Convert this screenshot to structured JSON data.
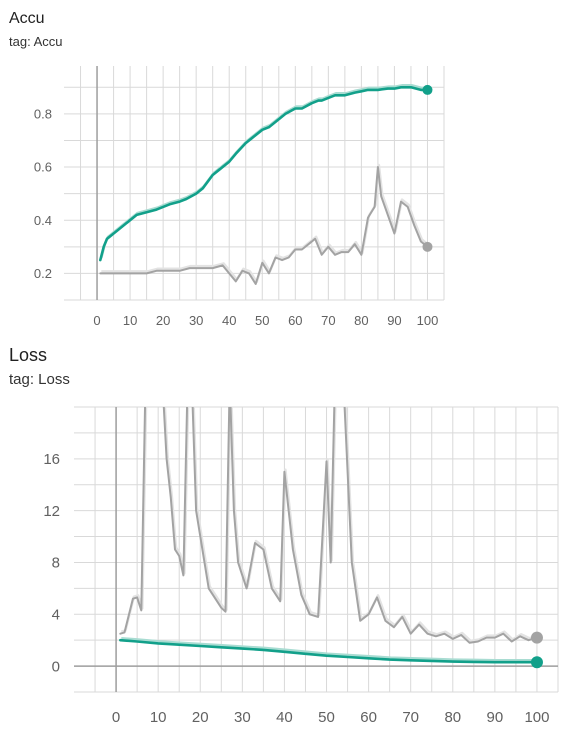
{
  "charts": [
    {
      "title": "Accu",
      "tag": "tag: Accu"
    },
    {
      "title": "Loss",
      "tag": "tag: Loss"
    }
  ],
  "colors": {
    "teal": "#12a08a",
    "gray": "#a3a3a3",
    "teal_light": "#a9dcd2",
    "gray_light": "#e3e3e3",
    "grid": "#d9d9d9"
  },
  "chart_data": [
    {
      "type": "line",
      "title": "Accu",
      "xlabel": "",
      "ylabel": "",
      "xlim": [
        -10,
        105
      ],
      "ylim": [
        0.1,
        0.98
      ],
      "xticks": [
        0,
        10,
        20,
        30,
        40,
        50,
        60,
        70,
        80,
        90,
        100
      ],
      "yticks": [
        0.2,
        0.4,
        0.6,
        0.8
      ],
      "grid": true,
      "series": [
        {
          "color": "#12a08a",
          "x": [
            1,
            2,
            3,
            4,
            5,
            6,
            8,
            10,
            12,
            15,
            18,
            20,
            22,
            25,
            27,
            30,
            32,
            35,
            37,
            40,
            42,
            45,
            47,
            50,
            52,
            55,
            57,
            60,
            62,
            65,
            67,
            68,
            70,
            72,
            75,
            78,
            80,
            82,
            85,
            88,
            90,
            92,
            95,
            98,
            100
          ],
          "values": [
            0.25,
            0.3,
            0.33,
            0.34,
            0.35,
            0.36,
            0.38,
            0.4,
            0.42,
            0.43,
            0.44,
            0.45,
            0.46,
            0.47,
            0.48,
            0.5,
            0.52,
            0.57,
            0.59,
            0.62,
            0.65,
            0.69,
            0.71,
            0.74,
            0.75,
            0.78,
            0.8,
            0.82,
            0.82,
            0.84,
            0.85,
            0.85,
            0.86,
            0.87,
            0.87,
            0.88,
            0.885,
            0.89,
            0.89,
            0.895,
            0.895,
            0.9,
            0.9,
            0.89,
            0.89
          ],
          "final": [
            100,
            0.89
          ]
        },
        {
          "color": "#a3a3a3",
          "x": [
            1,
            5,
            10,
            15,
            18,
            20,
            25,
            28,
            30,
            33,
            35,
            38,
            40,
            42,
            44,
            46,
            48,
            50,
            52,
            54,
            56,
            58,
            60,
            62,
            64,
            66,
            68,
            70,
            72,
            74,
            76,
            78,
            80,
            82,
            84,
            85,
            86,
            88,
            90,
            92,
            94,
            96,
            98,
            100
          ],
          "values": [
            0.2,
            0.2,
            0.2,
            0.2,
            0.21,
            0.21,
            0.21,
            0.22,
            0.22,
            0.22,
            0.22,
            0.23,
            0.2,
            0.17,
            0.21,
            0.2,
            0.16,
            0.24,
            0.2,
            0.26,
            0.25,
            0.26,
            0.29,
            0.29,
            0.31,
            0.33,
            0.27,
            0.3,
            0.27,
            0.28,
            0.28,
            0.31,
            0.27,
            0.41,
            0.45,
            0.6,
            0.49,
            0.42,
            0.35,
            0.47,
            0.45,
            0.38,
            0.32,
            0.3
          ],
          "final": [
            100,
            0.3
          ]
        }
      ]
    },
    {
      "type": "line",
      "title": "Loss",
      "xlabel": "",
      "ylabel": "",
      "xlim": [
        -10,
        105
      ],
      "ylim": [
        -2,
        20
      ],
      "xticks": [
        0,
        10,
        20,
        30,
        40,
        50,
        60,
        70,
        80,
        90,
        100
      ],
      "yticks": [
        0,
        4,
        8,
        12,
        16
      ],
      "grid": true,
      "series": [
        {
          "color": "#12a08a",
          "x": [
            1,
            5,
            10,
            15,
            20,
            25,
            30,
            35,
            40,
            45,
            50,
            55,
            60,
            65,
            70,
            75,
            80,
            85,
            90,
            95,
            100
          ],
          "values": [
            2.0,
            1.9,
            1.75,
            1.65,
            1.55,
            1.45,
            1.35,
            1.25,
            1.1,
            0.95,
            0.8,
            0.7,
            0.6,
            0.5,
            0.45,
            0.4,
            0.35,
            0.32,
            0.3,
            0.3,
            0.3
          ],
          "final": [
            100,
            0.3
          ]
        },
        {
          "color": "#a3a3a3",
          "x": [
            1,
            2,
            4,
            5,
            6,
            7,
            9,
            11,
            12,
            13,
            14,
            15,
            16,
            17,
            18,
            19,
            21,
            22,
            24,
            25,
            26,
            27,
            28,
            29,
            30,
            31,
            33,
            35,
            37,
            39,
            40,
            42,
            44,
            46,
            48,
            50,
            51,
            52,
            54,
            56,
            58,
            60,
            62,
            64,
            66,
            68,
            70,
            72,
            74,
            76,
            78,
            80,
            82,
            84,
            86,
            88,
            90,
            92,
            94,
            96,
            98,
            100
          ],
          "values": [
            2.5,
            2.6,
            5.2,
            5.3,
            4.3,
            22,
            22,
            22,
            16,
            13,
            9,
            8.5,
            7,
            22,
            22,
            12,
            8,
            6,
            5,
            4.5,
            4.2,
            22,
            12,
            8,
            7,
            6,
            9.5,
            9.0,
            6,
            5,
            15,
            9,
            5.5,
            4,
            3.8,
            15.8,
            8,
            22,
            22,
            8,
            3.5,
            4,
            5.3,
            3.5,
            3.0,
            3.8,
            2.5,
            3.2,
            2.5,
            2.3,
            2.5,
            2.1,
            2.4,
            1.8,
            1.9,
            2.2,
            2.2,
            2.5,
            1.9,
            2.3,
            2.0,
            2.2
          ],
          "final": [
            100,
            2.2
          ]
        }
      ]
    }
  ]
}
